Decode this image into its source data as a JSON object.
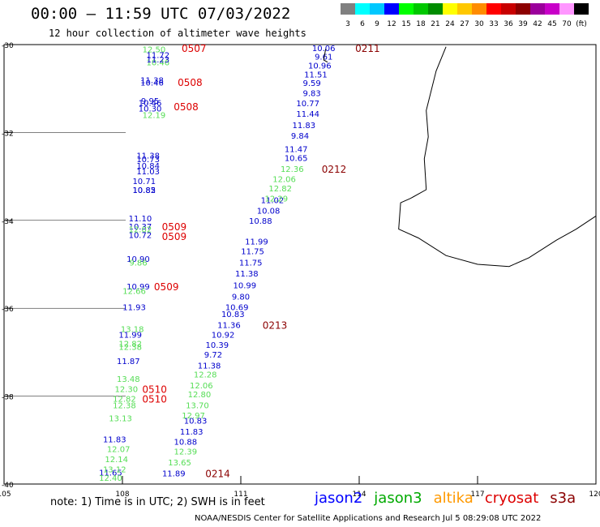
{
  "header": {
    "title": "00:00 – 11:59 UTC 07/03/2022",
    "subtitle": "12 hour collection of altimeter wave heights"
  },
  "colorbar": {
    "labels": [
      "3",
      "6",
      "9",
      "12",
      "15",
      "18",
      "21",
      "24",
      "27",
      "30",
      "33",
      "36",
      "39",
      "42",
      "45",
      "70",
      "(ft)"
    ],
    "colors": [
      "#808080",
      "#00ffff",
      "#00c8ff",
      "#0000ff",
      "#00ff00",
      "#00c800",
      "#008c00",
      "#ffff00",
      "#ffc800",
      "#ff8c00",
      "#ff0000",
      "#c80000",
      "#8c0000",
      "#9b009b",
      "#c800c8",
      "#ff96ff",
      "#000000"
    ]
  },
  "axes": {
    "x_ticks": [
      "105",
      "108",
      "111",
      "114",
      "117",
      "120"
    ],
    "y_ticks": [
      "-30",
      "-32",
      "-34",
      "-36",
      "-38",
      "-40"
    ]
  },
  "map": {
    "lon_range": [
      105,
      120
    ],
    "lat_range": [
      -40,
      -30
    ],
    "coastline": [
      [
        116.2,
        -30.05
      ],
      [
        115.95,
        -30.6
      ],
      [
        115.7,
        -31.5
      ],
      [
        115.75,
        -32.1
      ],
      [
        115.65,
        -32.6
      ],
      [
        115.7,
        -33.3
      ],
      [
        115.3,
        -33.5
      ],
      [
        115.05,
        -33.6
      ],
      [
        115.0,
        -34.2
      ],
      [
        115.5,
        -34.4
      ],
      [
        116.2,
        -34.8
      ],
      [
        117.0,
        -35.0
      ],
      [
        117.8,
        -35.05
      ],
      [
        118.3,
        -34.85
      ],
      [
        119.0,
        -34.45
      ],
      [
        119.5,
        -34.2
      ],
      [
        120.0,
        -33.9
      ]
    ]
  },
  "tracks": [
    {
      "color": "#55dd55",
      "points": [
        [
          108.8,
          -30.1,
          "12.50"
        ],
        [
          108.9,
          -30.4,
          "10.46"
        ]
      ]
    },
    {
      "color": "#0000cc",
      "points": [
        [
          108.9,
          -30.23,
          "11.72"
        ],
        [
          108.9,
          -30.33,
          "11.23"
        ],
        [
          108.75,
          -30.8,
          "11.38"
        ],
        [
          108.75,
          -30.86,
          "10.46"
        ],
        [
          108.7,
          -31.27,
          "9.95"
        ],
        [
          108.7,
          -31.32,
          "10.46"
        ],
        [
          108.7,
          -31.45,
          "10.30"
        ],
        [
          108.65,
          -32.52,
          "11.38"
        ],
        [
          108.65,
          -32.6,
          "10.73"
        ],
        [
          108.65,
          -32.75,
          "10.84"
        ],
        [
          108.65,
          -32.88,
          "11.03"
        ],
        [
          108.55,
          -33.1,
          "10.71"
        ],
        [
          108.55,
          -33.3,
          "10.85"
        ],
        [
          108.55,
          -33.3,
          "10.82"
        ],
        [
          108.45,
          -33.95,
          "11.10"
        ],
        [
          108.45,
          -34.13,
          "10.37"
        ],
        [
          108.45,
          -34.33,
          "10.72"
        ],
        [
          108.4,
          -34.87,
          "10.90"
        ],
        [
          108.4,
          -35.5,
          "10.99"
        ],
        [
          108.3,
          -35.97,
          "11.93"
        ],
        [
          108.2,
          -36.6,
          "11.99"
        ],
        [
          108.15,
          -37.2,
          "11.87"
        ],
        [
          107.8,
          -38.98,
          "11.83"
        ],
        [
          107.7,
          -39.73,
          "11.65"
        ]
      ]
    },
    {
      "color": "#55dd55",
      "points": [
        [
          108.8,
          -31.6,
          "12.19"
        ],
        [
          108.45,
          -34.2,
          "12.02"
        ],
        [
          108.4,
          -34.95,
          "9.86"
        ],
        [
          108.3,
          -35.6,
          "12.66"
        ],
        [
          108.25,
          -36.47,
          "13.18"
        ],
        [
          108.2,
          -36.8,
          "12.82"
        ],
        [
          108.2,
          -36.87,
          "12.38"
        ],
        [
          108.15,
          -37.6,
          "13.48"
        ],
        [
          108.1,
          -37.83,
          "12.30"
        ],
        [
          108.05,
          -38.05,
          "12.82"
        ],
        [
          108.05,
          -38.2,
          "12.38"
        ],
        [
          107.95,
          -38.5,
          "13.13"
        ],
        [
          107.9,
          -39.2,
          "12.07"
        ],
        [
          107.85,
          -39.43,
          "12.14"
        ],
        [
          107.8,
          -39.66,
          "13.12"
        ],
        [
          107.7,
          -39.85,
          "12.40"
        ]
      ]
    },
    {
      "color": "#0000cc",
      "points": [
        [
          113.1,
          -30.07,
          "10.06"
        ],
        [
          113.1,
          -30.27,
          "9.61"
        ],
        [
          113.0,
          -30.47,
          "10.96"
        ],
        [
          112.9,
          -30.67,
          "11.51"
        ],
        [
          112.8,
          -30.87,
          "9.59"
        ],
        [
          112.8,
          -31.1,
          "9.83"
        ],
        [
          112.7,
          -31.33,
          "10.77"
        ],
        [
          112.7,
          -31.57,
          "11.44"
        ],
        [
          112.6,
          -31.83,
          "11.83"
        ],
        [
          112.5,
          -32.07,
          "9.84"
        ],
        [
          112.4,
          -32.37,
          "11.47"
        ],
        [
          112.4,
          -32.57,
          "10.65"
        ],
        [
          111.8,
          -33.53,
          "11.02"
        ],
        [
          111.7,
          -33.77,
          "10.08"
        ],
        [
          111.5,
          -34.0,
          "10.88"
        ],
        [
          111.4,
          -34.47,
          "11.99"
        ],
        [
          111.3,
          -34.7,
          "11.75"
        ],
        [
          111.25,
          -34.95,
          "11.75"
        ],
        [
          111.15,
          -35.2,
          "11.38"
        ],
        [
          111.1,
          -35.47,
          "10.99"
        ],
        [
          111.0,
          -35.73,
          "9.80"
        ],
        [
          110.9,
          -35.97,
          "10.69"
        ],
        [
          110.8,
          -36.13,
          "10.83"
        ],
        [
          110.7,
          -36.37,
          "11.36"
        ],
        [
          110.55,
          -36.6,
          "10.92"
        ],
        [
          110.4,
          -36.83,
          "10.39"
        ],
        [
          110.3,
          -37.05,
          "9.72"
        ],
        [
          110.2,
          -37.3,
          "11.38"
        ],
        [
          109.85,
          -38.55,
          "10.83"
        ],
        [
          109.75,
          -38.8,
          "11.83"
        ],
        [
          109.6,
          -39.03,
          "10.88"
        ],
        [
          109.3,
          -39.75,
          "11.89"
        ]
      ]
    },
    {
      "color": "#55dd55",
      "points": [
        [
          112.3,
          -32.82,
          "12.36"
        ],
        [
          112.1,
          -33.05,
          "12.06"
        ],
        [
          112.0,
          -33.27,
          "12.82"
        ],
        [
          111.9,
          -33.5,
          "12.29"
        ],
        [
          110.1,
          -37.5,
          "12.28"
        ],
        [
          110.0,
          -37.75,
          "12.06"
        ],
        [
          109.95,
          -37.95,
          "12.80"
        ],
        [
          109.9,
          -38.2,
          "13.70"
        ],
        [
          109.8,
          -38.43,
          "12.97"
        ],
        [
          109.6,
          -39.25,
          "12.39"
        ],
        [
          109.45,
          -39.5,
          "13.65"
        ]
      ]
    }
  ],
  "pass_labels": [
    {
      "text": "0507",
      "lon": 109.5,
      "lat": -30.07,
      "color": "#dd0000"
    },
    {
      "text": "0508",
      "lon": 109.4,
      "lat": -30.85,
      "color": "#dd0000"
    },
    {
      "text": "0508",
      "lon": 109.3,
      "lat": -31.4,
      "color": "#dd0000"
    },
    {
      "text": "0509",
      "lon": 109.0,
      "lat": -34.13,
      "color": "#dd0000"
    },
    {
      "text": "0509",
      "lon": 109.0,
      "lat": -34.35,
      "color": "#dd0000"
    },
    {
      "text": "0509",
      "lon": 108.8,
      "lat": -35.5,
      "color": "#dd0000"
    },
    {
      "text": "0510",
      "lon": 108.5,
      "lat": -37.83,
      "color": "#dd0000"
    },
    {
      "text": "0510",
      "lon": 108.5,
      "lat": -38.05,
      "color": "#dd0000"
    },
    {
      "text": "0211",
      "lon": 113.9,
      "lat": -30.07,
      "color": "#8b0000"
    },
    {
      "text": "0212",
      "lon": 113.05,
      "lat": -32.82,
      "color": "#8b0000"
    },
    {
      "text": "0213",
      "lon": 111.55,
      "lat": -36.37,
      "color": "#8b0000"
    },
    {
      "text": "0214",
      "lon": 110.1,
      "lat": -39.75,
      "color": "#8b0000"
    }
  ],
  "footer": {
    "note": "note:  1) Time is in UTC;  2) SWH is in feet",
    "credit": "NOAA/NESDIS Center for Satellite Applications and Research     Jul  5 08:29:08 UTC 2022"
  },
  "legend": [
    {
      "label": "jason2",
      "color": "#0000ff"
    },
    {
      "label": "jason3",
      "color": "#00aa00"
    },
    {
      "label": "altika",
      "color": "#ff9900"
    },
    {
      "label": "cryosat",
      "color": "#dd0000"
    },
    {
      "label": "s3a",
      "color": "#8b0000"
    }
  ]
}
